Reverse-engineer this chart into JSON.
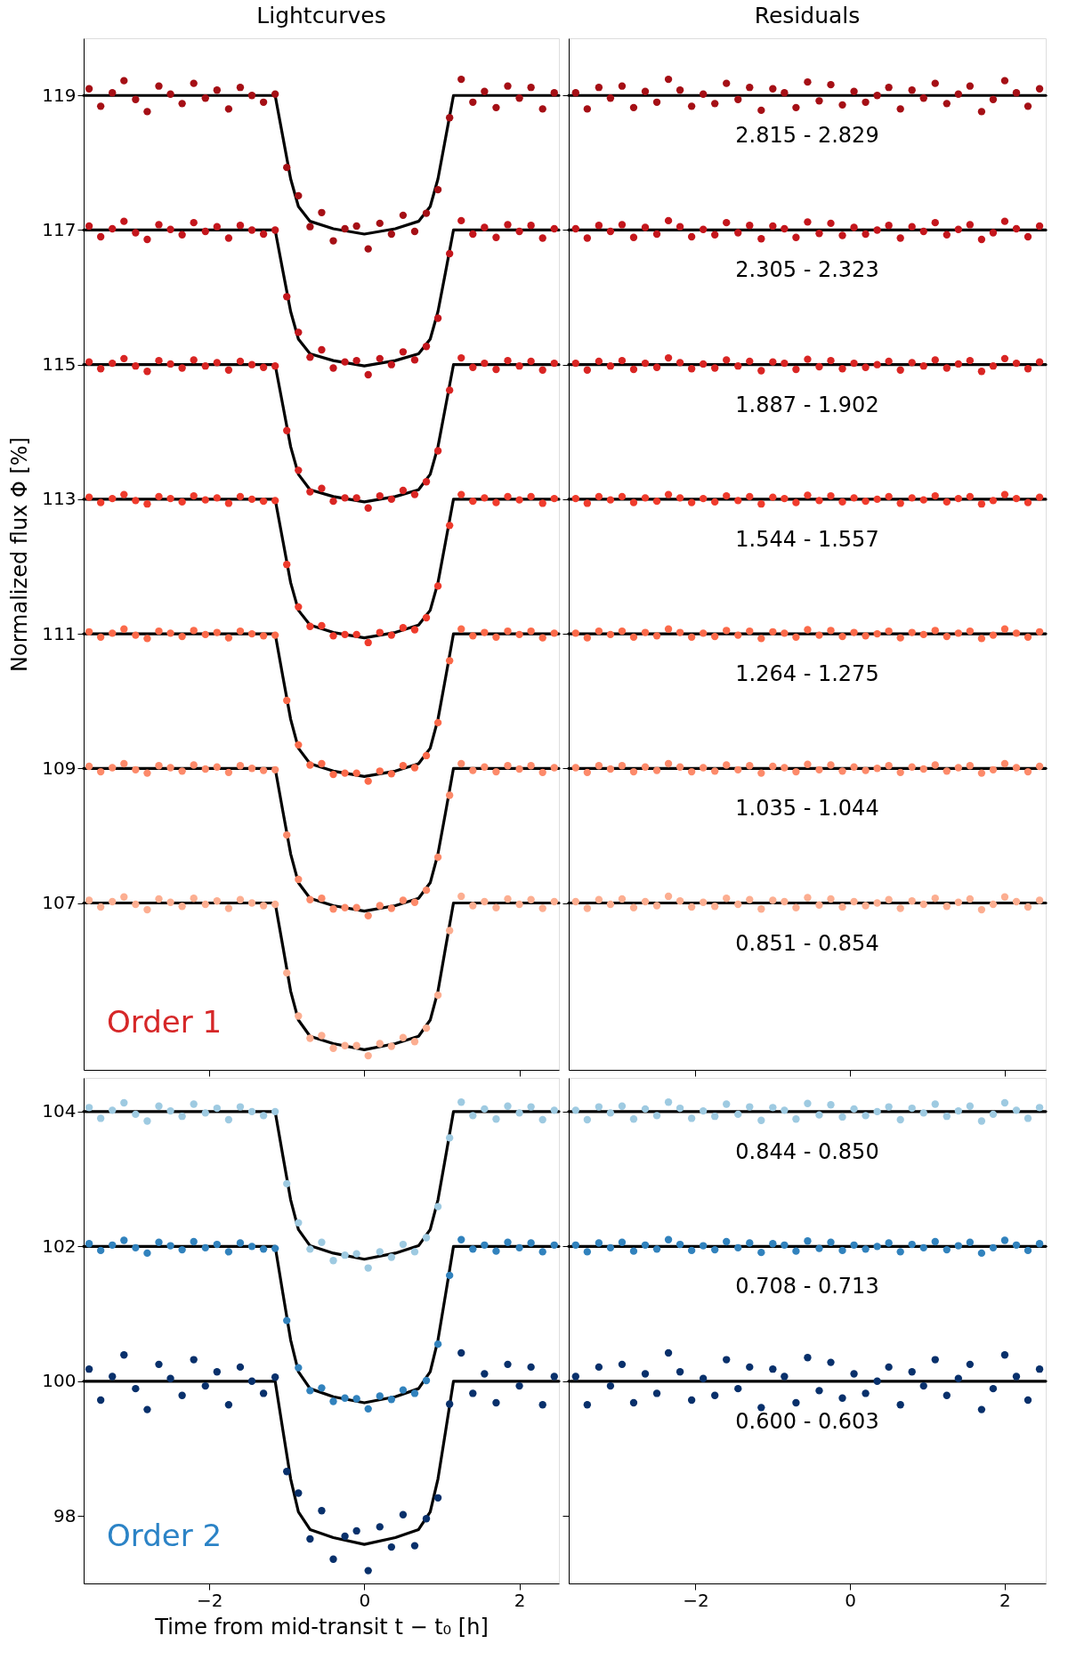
{
  "chart_data": [
    {
      "type": "scatter",
      "title": "Lightcurves",
      "ylabel": "Normalized flux Φ [%]",
      "xlim": [
        -3.62,
        2.51
      ],
      "xticks": [
        -2,
        0,
        2
      ],
      "ylim": [
        104.52,
        119.85
      ],
      "yticks": [
        107,
        109,
        111,
        113,
        115,
        117,
        119
      ],
      "tick_labels": "y",
      "marker": "circle",
      "x": [
        -3.55,
        -3.4,
        -3.25,
        -3.1,
        -2.95,
        -2.8,
        -2.65,
        -2.5,
        -2.35,
        -2.2,
        -2.05,
        -1.9,
        -1.75,
        -1.6,
        -1.45,
        -1.3,
        -1.15,
        -1.0,
        -0.85,
        -0.7,
        -0.55,
        -0.4,
        -0.25,
        -0.1,
        0.05,
        0.2,
        0.35,
        0.5,
        0.65,
        0.8,
        0.95,
        1.1,
        1.25,
        1.4,
        1.55,
        1.7,
        1.85,
        2.0,
        2.15,
        2.3,
        2.45
      ],
      "annotations": [
        "Order 1"
      ],
      "series": [
        {
          "color": "#a50f15",
          "values": [
            119.1,
            118.84,
            119.04,
            119.22,
            118.94,
            118.76,
            119.14,
            119.02,
            118.88,
            119.18,
            118.96,
            119.08,
            118.8,
            119.12,
            119.0,
            118.9,
            119.02,
            117.93,
            117.51,
            117.05,
            117.26,
            116.84,
            117.02,
            117.06,
            116.72,
            117.1,
            116.94,
            117.22,
            116.98,
            117.25,
            117.6,
            118.67,
            119.24,
            118.9,
            119.06,
            118.82,
            119.14,
            118.96,
            119.12,
            118.8,
            119.04
          ]
        },
        {
          "color": "#c4161c",
          "values": [
            117.06,
            116.9,
            117.02,
            117.13,
            116.96,
            116.86,
            117.08,
            117.01,
            116.93,
            117.11,
            116.98,
            117.05,
            116.88,
            117.07,
            117.0,
            116.94,
            117.0,
            116.01,
            115.48,
            115.11,
            115.22,
            114.95,
            115.04,
            115.06,
            114.85,
            115.09,
            115.0,
            115.19,
            115.07,
            115.27,
            115.69,
            116.65,
            117.14,
            116.94,
            117.04,
            116.89,
            117.08,
            116.98,
            117.07,
            116.88,
            117.02
          ]
        },
        {
          "color": "#d92523",
          "values": [
            115.04,
            114.94,
            115.02,
            115.09,
            114.98,
            114.9,
            115.06,
            115.01,
            114.95,
            115.07,
            114.98,
            115.03,
            114.92,
            115.05,
            115.0,
            114.96,
            114.98,
            114.02,
            113.43,
            113.11,
            113.16,
            112.97,
            113.02,
            113.02,
            112.87,
            113.05,
            113.0,
            113.13,
            113.07,
            113.26,
            113.72,
            114.62,
            115.1,
            114.96,
            115.02,
            114.93,
            115.06,
            114.98,
            115.05,
            114.92,
            115.02
          ]
        },
        {
          "color": "#ef3b2c",
          "values": [
            113.03,
            112.95,
            113.01,
            113.07,
            112.98,
            112.93,
            113.04,
            113.01,
            112.96,
            113.05,
            112.99,
            113.02,
            112.94,
            113.04,
            113.0,
            112.97,
            112.98,
            112.03,
            111.4,
            111.11,
            111.12,
            110.97,
            110.99,
            110.99,
            110.87,
            111.02,
            110.98,
            111.09,
            111.06,
            111.24,
            111.71,
            112.61,
            113.07,
            112.97,
            113.02,
            112.95,
            113.04,
            112.99,
            113.04,
            112.94,
            113.01
          ]
        },
        {
          "color": "#fb6a4a",
          "values": [
            111.03,
            110.95,
            111.01,
            111.07,
            110.98,
            110.93,
            111.04,
            111.01,
            110.96,
            111.05,
            110.99,
            111.02,
            110.94,
            111.04,
            111.0,
            110.97,
            110.98,
            110.01,
            109.35,
            109.05,
            109.07,
            108.91,
            108.93,
            108.93,
            108.81,
            108.96,
            108.92,
            109.04,
            109.01,
            109.19,
            109.68,
            110.6,
            111.07,
            110.97,
            111.02,
            110.95,
            111.04,
            110.99,
            111.04,
            110.94,
            111.01
          ]
        },
        {
          "color": "#fc8a6a",
          "values": [
            109.03,
            108.95,
            109.01,
            109.07,
            108.98,
            108.93,
            109.04,
            109.01,
            108.96,
            109.05,
            108.99,
            109.02,
            108.94,
            109.04,
            109.0,
            108.97,
            108.98,
            108.01,
            107.35,
            107.05,
            107.07,
            106.91,
            106.93,
            106.93,
            106.81,
            106.96,
            106.92,
            107.04,
            107.01,
            107.19,
            107.68,
            108.6,
            109.07,
            108.97,
            109.02,
            108.95,
            109.04,
            108.99,
            109.04,
            108.94,
            109.01
          ]
        },
        {
          "color": "#fcae91",
          "values": [
            107.04,
            106.94,
            107.02,
            107.09,
            106.98,
            106.9,
            107.06,
            107.01,
            106.95,
            107.07,
            106.98,
            107.03,
            106.92,
            107.05,
            107.0,
            106.96,
            106.98,
            105.96,
            105.32,
            104.99,
            105.03,
            104.84,
            104.88,
            104.88,
            104.73,
            104.91,
            104.87,
            105.0,
            104.94,
            105.14,
            105.63,
            106.59,
            107.1,
            106.96,
            107.02,
            106.93,
            107.06,
            106.98,
            107.05,
            106.92,
            107.02
          ]
        },
        {
          "type": "line",
          "marker": "none",
          "color": "#000000",
          "x": [
            -3.62,
            -1.15,
            -1.05,
            -0.95,
            -0.85,
            -0.7,
            -0.4,
            0,
            0.4,
            0.7,
            0.85,
            0.95,
            1.05,
            1.15,
            2.51
          ],
          "values": [
            119,
            119,
            118.38,
            117.76,
            117.35,
            117.13,
            117.02,
            116.94,
            117.02,
            117.13,
            117.35,
            117.76,
            118.38,
            119,
            119
          ]
        },
        {
          "type": "line",
          "marker": "none",
          "color": "#000000",
          "x": [
            -3.62,
            -1.15,
            -1.05,
            -0.95,
            -0.85,
            -0.7,
            -0.4,
            0,
            0.4,
            0.7,
            0.85,
            0.95,
            1.05,
            1.15,
            2.51
          ],
          "values": [
            117,
            117,
            116.39,
            115.79,
            115.38,
            115.16,
            115.06,
            114.98,
            115.06,
            115.16,
            115.38,
            115.79,
            116.39,
            117,
            117
          ]
        },
        {
          "type": "line",
          "marker": "none",
          "color": "#000000",
          "x": [
            -3.62,
            -1.15,
            -1.05,
            -0.95,
            -0.85,
            -0.7,
            -0.4,
            0,
            0.4,
            0.7,
            0.85,
            0.95,
            1.05,
            1.15,
            2.51
          ],
          "values": [
            115,
            115,
            114.39,
            113.78,
            113.37,
            113.14,
            113.04,
            112.96,
            113.04,
            113.14,
            113.37,
            113.78,
            114.39,
            115,
            115
          ]
        },
        {
          "type": "line",
          "marker": "none",
          "color": "#000000",
          "x": [
            -3.62,
            -1.15,
            -1.05,
            -0.95,
            -0.85,
            -0.7,
            -0.4,
            0,
            0.4,
            0.7,
            0.85,
            0.95,
            1.05,
            1.15,
            2.51
          ],
          "values": [
            113,
            113,
            112.38,
            111.76,
            111.35,
            111.13,
            111.02,
            110.94,
            111.02,
            111.13,
            111.35,
            111.76,
            112.38,
            113,
            113
          ]
        },
        {
          "type": "line",
          "marker": "none",
          "color": "#000000",
          "x": [
            -3.62,
            -1.15,
            -1.05,
            -0.95,
            -0.85,
            -0.7,
            -0.4,
            0,
            0.4,
            0.7,
            0.85,
            0.95,
            1.05,
            1.15,
            2.51
          ],
          "values": [
            111,
            111,
            110.36,
            109.73,
            109.3,
            109.07,
            108.96,
            108.88,
            108.96,
            109.07,
            109.3,
            109.73,
            110.36,
            111,
            111
          ]
        },
        {
          "type": "line",
          "marker": "none",
          "color": "#000000",
          "x": [
            -3.62,
            -1.15,
            -1.05,
            -0.95,
            -0.85,
            -0.7,
            -0.4,
            0,
            0.4,
            0.7,
            0.85,
            0.95,
            1.05,
            1.15,
            2.51
          ],
          "values": [
            109,
            109,
            108.36,
            107.73,
            107.3,
            107.07,
            106.96,
            106.88,
            106.96,
            107.07,
            107.3,
            107.73,
            108.36,
            109,
            109
          ]
        },
        {
          "type": "line",
          "marker": "none",
          "color": "#000000",
          "x": [
            -3.62,
            -1.15,
            -1.05,
            -0.95,
            -0.85,
            -0.7,
            -0.4,
            0,
            0.4,
            0.7,
            0.85,
            0.95,
            1.05,
            1.15,
            2.51
          ],
          "values": [
            107,
            107,
            106.35,
            105.69,
            105.26,
            105.02,
            104.91,
            104.82,
            104.91,
            105.02,
            105.26,
            105.69,
            106.35,
            107,
            107
          ]
        }
      ]
    },
    {
      "type": "scatter",
      "title": "Residuals",
      "xlim": [
        -3.64,
        2.53
      ],
      "xticks": [
        -2,
        0,
        2
      ],
      "ylim": [
        104.52,
        119.85
      ],
      "yticks": [
        107,
        109,
        111,
        113,
        115,
        117,
        119
      ],
      "tick_labels": false,
      "marker": "circle",
      "x": [
        -3.55,
        -3.4,
        -3.25,
        -3.1,
        -2.95,
        -2.8,
        -2.65,
        -2.5,
        -2.35,
        -2.2,
        -2.05,
        -1.9,
        -1.75,
        -1.6,
        -1.45,
        -1.3,
        -1.15,
        -1.0,
        -0.85,
        -0.7,
        -0.55,
        -0.4,
        -0.25,
        -0.1,
        0.05,
        0.2,
        0.35,
        0.5,
        0.65,
        0.8,
        0.95,
        1.1,
        1.25,
        1.4,
        1.55,
        1.7,
        1.85,
        2.0,
        2.15,
        2.3,
        2.45
      ],
      "annotations": [
        "2.815 - 2.829",
        "2.305 - 2.323",
        "1.887 - 1.902",
        "1.544 - 1.557",
        "1.264 - 1.275",
        "1.035 - 1.044",
        "0.851 - 0.854"
      ],
      "series": [
        {
          "color": "#a50f15",
          "values": [
            119.04,
            118.8,
            119.12,
            118.96,
            119.14,
            118.82,
            119.06,
            118.9,
            119.24,
            119.08,
            118.84,
            119.02,
            118.88,
            119.18,
            118.94,
            119.12,
            118.78,
            119.1,
            119.04,
            118.82,
            119.2,
            118.92,
            119.16,
            118.86,
            119.06,
            118.9,
            119.0,
            119.12,
            118.8,
            119.08,
            118.96,
            119.18,
            118.88,
            119.02,
            119.14,
            118.76,
            118.94,
            119.22,
            119.04,
            118.84,
            119.1
          ]
        },
        {
          "color": "#c4161c",
          "values": [
            117.02,
            116.88,
            117.07,
            116.98,
            117.08,
            116.89,
            117.04,
            116.94,
            117.14,
            117.05,
            116.9,
            117.01,
            116.93,
            117.11,
            116.96,
            117.07,
            116.87,
            117.06,
            117.02,
            116.89,
            117.12,
            116.95,
            117.1,
            116.92,
            117.04,
            116.94,
            117.0,
            117.07,
            116.88,
            117.05,
            116.98,
            117.11,
            116.93,
            117.01,
            117.08,
            116.86,
            116.96,
            117.13,
            117.02,
            116.9,
            117.06
          ]
        },
        {
          "color": "#d92523",
          "values": [
            115.02,
            114.92,
            115.05,
            114.98,
            115.06,
            114.93,
            115.02,
            114.96,
            115.1,
            115.03,
            114.94,
            115.01,
            114.95,
            115.07,
            114.98,
            115.05,
            114.91,
            115.04,
            115.02,
            114.93,
            115.08,
            114.97,
            115.06,
            114.94,
            115.02,
            114.96,
            115.0,
            115.05,
            114.92,
            115.03,
            114.98,
            115.07,
            114.95,
            115.01,
            115.06,
            114.9,
            114.98,
            115.09,
            115.02,
            114.94,
            115.04
          ]
        },
        {
          "color": "#ef3b2c",
          "values": [
            113.01,
            112.94,
            113.04,
            112.99,
            113.04,
            112.95,
            113.02,
            112.97,
            113.07,
            113.02,
            112.95,
            113.01,
            112.96,
            113.05,
            112.98,
            113.04,
            112.93,
            113.03,
            113.01,
            112.95,
            113.06,
            112.98,
            113.05,
            112.96,
            113.02,
            112.97,
            113.0,
            113.04,
            112.94,
            113.02,
            112.99,
            113.05,
            112.96,
            113.01,
            113.04,
            112.93,
            112.98,
            113.07,
            113.01,
            112.95,
            113.03
          ]
        },
        {
          "color": "#fb6a4a",
          "values": [
            111.01,
            110.94,
            111.04,
            110.99,
            111.04,
            110.95,
            111.02,
            110.97,
            111.07,
            111.02,
            110.95,
            111.01,
            110.96,
            111.05,
            110.98,
            111.04,
            110.93,
            111.03,
            111.01,
            110.95,
            111.06,
            110.98,
            111.05,
            110.96,
            111.02,
            110.97,
            111.0,
            111.04,
            110.94,
            111.02,
            110.99,
            111.05,
            110.96,
            111.01,
            111.04,
            110.93,
            110.98,
            111.07,
            111.01,
            110.95,
            111.03
          ]
        },
        {
          "color": "#fc8a6a",
          "values": [
            109.01,
            108.94,
            109.04,
            108.99,
            109.04,
            108.95,
            109.02,
            108.97,
            109.07,
            109.02,
            108.95,
            109.01,
            108.96,
            109.05,
            108.98,
            109.04,
            108.93,
            109.03,
            109.01,
            108.95,
            109.06,
            108.98,
            109.05,
            108.96,
            109.02,
            108.97,
            109.0,
            109.04,
            108.94,
            109.02,
            108.99,
            109.05,
            108.96,
            109.01,
            109.04,
            108.93,
            108.98,
            109.07,
            109.01,
            108.95,
            109.03
          ]
        },
        {
          "color": "#fcae91",
          "values": [
            107.02,
            106.92,
            107.05,
            106.98,
            107.06,
            106.93,
            107.02,
            106.96,
            107.1,
            107.03,
            106.94,
            107.01,
            106.95,
            107.07,
            106.98,
            107.05,
            106.91,
            107.04,
            107.02,
            106.93,
            107.08,
            106.97,
            107.06,
            106.94,
            107.02,
            106.96,
            107.0,
            107.05,
            106.92,
            107.03,
            106.98,
            107.07,
            106.95,
            107.01,
            107.06,
            106.9,
            106.98,
            107.09,
            107.02,
            106.94,
            107.04
          ]
        },
        {
          "type": "line",
          "marker": "none",
          "color": "#000000",
          "x": [
            -3.64,
            2.53
          ],
          "values": [
            119,
            119
          ]
        },
        {
          "type": "line",
          "marker": "none",
          "color": "#000000",
          "x": [
            -3.64,
            2.53
          ],
          "values": [
            117,
            117
          ]
        },
        {
          "type": "line",
          "marker": "none",
          "color": "#000000",
          "x": [
            -3.64,
            2.53
          ],
          "values": [
            115,
            115
          ]
        },
        {
          "type": "line",
          "marker": "none",
          "color": "#000000",
          "x": [
            -3.64,
            2.53
          ],
          "values": [
            113,
            113
          ]
        },
        {
          "type": "line",
          "marker": "none",
          "color": "#000000",
          "x": [
            -3.64,
            2.53
          ],
          "values": [
            111,
            111
          ]
        },
        {
          "type": "line",
          "marker": "none",
          "color": "#000000",
          "x": [
            -3.64,
            2.53
          ],
          "values": [
            109,
            109
          ]
        },
        {
          "type": "line",
          "marker": "none",
          "color": "#000000",
          "x": [
            -3.64,
            2.53
          ],
          "values": [
            107,
            107
          ]
        }
      ]
    },
    {
      "type": "scatter",
      "xlabel": "Time from mid-transit t − t₀ [h]",
      "xlim": [
        -3.62,
        2.51
      ],
      "xticks": [
        -2,
        0,
        2
      ],
      "ylim": [
        97.0,
        104.5
      ],
      "yticks": [
        98,
        100,
        102,
        104
      ],
      "marker": "circle",
      "x": [
        -3.55,
        -3.4,
        -3.25,
        -3.1,
        -2.95,
        -2.8,
        -2.65,
        -2.5,
        -2.35,
        -2.2,
        -2.05,
        -1.9,
        -1.75,
        -1.6,
        -1.45,
        -1.3,
        -1.15,
        -1.0,
        -0.85,
        -0.7,
        -0.55,
        -0.4,
        -0.25,
        -0.1,
        0.05,
        0.2,
        0.35,
        0.5,
        0.65,
        0.8,
        0.95,
        1.1,
        1.25,
        1.4,
        1.55,
        1.7,
        1.85,
        2.0,
        2.15,
        2.3,
        2.45
      ],
      "annotations": [
        "Order 2"
      ],
      "series": [
        {
          "color": "#9ecae1",
          "values": [
            104.06,
            103.9,
            104.02,
            104.13,
            103.96,
            103.86,
            104.08,
            104.01,
            103.93,
            104.11,
            103.98,
            104.05,
            103.88,
            104.07,
            104.0,
            103.94,
            104.0,
            102.93,
            102.35,
            101.96,
            102.06,
            101.79,
            101.87,
            101.89,
            101.68,
            101.92,
            101.84,
            102.03,
            101.92,
            102.13,
            102.59,
            103.61,
            104.14,
            103.94,
            104.04,
            103.89,
            104.08,
            103.98,
            104.07,
            103.88,
            104.02
          ]
        },
        {
          "color": "#3182bd",
          "values": [
            102.04,
            101.94,
            102.02,
            102.09,
            101.98,
            101.9,
            102.06,
            102.01,
            101.95,
            102.07,
            101.98,
            102.03,
            101.92,
            102.05,
            102.0,
            101.96,
            101.97,
            100.9,
            100.2,
            99.86,
            99.9,
            99.7,
            99.75,
            99.74,
            99.59,
            99.78,
            99.73,
            99.87,
            99.82,
            100.01,
            100.55,
            101.57,
            102.1,
            101.96,
            102.02,
            101.93,
            102.06,
            101.98,
            102.05,
            101.92,
            102.02
          ]
        },
        {
          "color": "#08306b",
          "values": [
            100.18,
            99.72,
            100.07,
            100.39,
            99.89,
            99.58,
            100.25,
            100.04,
            99.79,
            100.32,
            99.93,
            100.14,
            99.65,
            100.21,
            100.0,
            99.82,
            100.06,
            98.66,
            98.34,
            97.66,
            98.08,
            97.36,
            97.7,
            97.78,
            97.19,
            97.84,
            97.54,
            98.02,
            97.56,
            97.96,
            98.27,
            99.66,
            100.42,
            99.82,
            100.11,
            99.68,
            100.25,
            99.93,
            100.21,
            99.65,
            100.07
          ]
        },
        {
          "type": "line",
          "marker": "none",
          "color": "#000000",
          "x": [
            -3.62,
            -1.15,
            -1.05,
            -0.95,
            -0.85,
            -0.7,
            -0.4,
            0,
            0.4,
            0.7,
            0.85,
            0.95,
            1.05,
            1.15,
            2.51
          ],
          "values": [
            104,
            104,
            103.34,
            102.69,
            102.25,
            102.01,
            101.9,
            101.81,
            101.9,
            102.01,
            102.25,
            102.69,
            103.34,
            104,
            104
          ]
        },
        {
          "type": "line",
          "marker": "none",
          "color": "#000000",
          "x": [
            -3.62,
            -1.15,
            -1.05,
            -0.95,
            -0.85,
            -0.7,
            -0.4,
            0,
            0.4,
            0.7,
            0.85,
            0.95,
            1.05,
            1.15,
            2.51
          ],
          "values": [
            102,
            102,
            101.3,
            100.61,
            100.14,
            99.89,
            99.77,
            99.68,
            99.77,
            99.89,
            100.14,
            100.61,
            101.3,
            102,
            102
          ]
        },
        {
          "type": "line",
          "marker": "none",
          "color": "#000000",
          "x": [
            -3.62,
            -1.15,
            -1.05,
            -0.95,
            -0.85,
            -0.7,
            -0.4,
            0,
            0.4,
            0.7,
            0.85,
            0.95,
            1.05,
            1.15,
            2.51
          ],
          "values": [
            100,
            100,
            99.27,
            98.55,
            98.06,
            97.8,
            97.68,
            97.58,
            97.68,
            97.8,
            98.06,
            98.55,
            99.27,
            100,
            100
          ]
        }
      ]
    },
    {
      "type": "scatter",
      "xlim": [
        -3.64,
        2.53
      ],
      "xticks": [
        -2,
        0,
        2
      ],
      "ylim": [
        97.0,
        104.5
      ],
      "yticks": [
        98,
        100,
        102,
        104
      ],
      "tick_labels": "x",
      "marker": "circle",
      "x": [
        -3.55,
        -3.4,
        -3.25,
        -3.1,
        -2.95,
        -2.8,
        -2.65,
        -2.5,
        -2.35,
        -2.2,
        -2.05,
        -1.9,
        -1.75,
        -1.6,
        -1.45,
        -1.3,
        -1.15,
        -1.0,
        -0.85,
        -0.7,
        -0.55,
        -0.4,
        -0.25,
        -0.1,
        0.05,
        0.2,
        0.35,
        0.5,
        0.65,
        0.8,
        0.95,
        1.1,
        1.25,
        1.4,
        1.55,
        1.7,
        1.85,
        2.0,
        2.15,
        2.3,
        2.45
      ],
      "annotations": [
        "0.844 - 0.850",
        "0.708 - 0.713",
        "0.600 - 0.603"
      ],
      "series": [
        {
          "color": "#9ecae1",
          "values": [
            104.02,
            103.88,
            104.07,
            103.98,
            104.08,
            103.89,
            104.04,
            103.94,
            104.14,
            104.05,
            103.9,
            104.01,
            103.93,
            104.11,
            103.96,
            104.07,
            103.87,
            104.06,
            104.02,
            103.89,
            104.12,
            103.95,
            104.1,
            103.92,
            104.04,
            103.94,
            104.0,
            104.07,
            103.88,
            104.05,
            103.98,
            104.11,
            103.93,
            104.01,
            104.08,
            103.86,
            103.96,
            104.13,
            104.02,
            103.9,
            104.06
          ]
        },
        {
          "color": "#3182bd",
          "values": [
            102.02,
            101.92,
            102.05,
            101.98,
            102.06,
            101.93,
            102.02,
            101.96,
            102.1,
            102.03,
            101.94,
            102.01,
            101.95,
            102.07,
            101.98,
            102.05,
            101.91,
            102.04,
            102.02,
            101.93,
            102.08,
            101.97,
            102.06,
            101.94,
            102.02,
            101.96,
            102.0,
            102.05,
            101.92,
            102.03,
            101.98,
            102.07,
            101.95,
            102.01,
            102.06,
            101.9,
            101.98,
            102.09,
            102.02,
            101.94,
            102.04
          ]
        },
        {
          "color": "#08306b",
          "values": [
            100.07,
            99.65,
            100.21,
            99.93,
            100.25,
            99.68,
            100.11,
            99.82,
            100.42,
            100.14,
            99.72,
            100.04,
            99.79,
            100.32,
            99.89,
            100.21,
            99.61,
            100.18,
            100.07,
            99.68,
            100.35,
            99.86,
            100.28,
            99.75,
            100.11,
            99.82,
            100.0,
            100.21,
            99.65,
            100.14,
            99.93,
            100.32,
            99.79,
            100.04,
            100.25,
            99.58,
            99.89,
            100.39,
            100.07,
            99.72,
            100.18
          ]
        },
        {
          "type": "line",
          "marker": "none",
          "color": "#000000",
          "x": [
            -3.64,
            2.53
          ],
          "values": [
            104,
            104
          ]
        },
        {
          "type": "line",
          "marker": "none",
          "color": "#000000",
          "x": [
            -3.64,
            2.53
          ],
          "values": [
            102,
            102
          ]
        },
        {
          "type": "line",
          "marker": "none",
          "color": "#000000",
          "x": [
            -3.64,
            2.53
          ],
          "values": [
            100,
            100
          ]
        }
      ]
    }
  ]
}
